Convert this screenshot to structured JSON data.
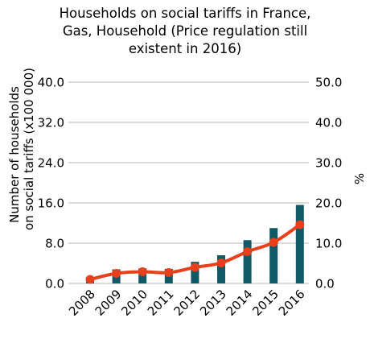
{
  "chart_data": {
    "type": "bar",
    "title_lines": [
      "Households on social tariffs in France,",
      "Gas, Household (Price regulation still",
      "existent in 2016)"
    ],
    "categories": [
      "2008",
      "2009",
      "2010",
      "2011",
      "2012",
      "2013",
      "2014",
      "2015",
      "2016"
    ],
    "ylabel_lines": [
      "Number of households",
      "on social tariffs (x100 000)"
    ],
    "y2label": "%",
    "ylim": [
      0,
      40
    ],
    "y2lim": [
      0,
      50
    ],
    "yticks": [
      "0.0",
      "8.0",
      "16.0",
      "24.0",
      "32.0",
      "40.0"
    ],
    "y2ticks": [
      "0.0",
      "10.0",
      "20.0",
      "30.0",
      "40.0",
      "50.0"
    ],
    "grid": true,
    "series": [
      {
        "type": "bar",
        "axis": "left",
        "color": "#0f5a66",
        "values": [
          1.1,
          2.8,
          3.0,
          2.9,
          4.3,
          5.6,
          8.6,
          11.0,
          15.6
        ]
      },
      {
        "type": "line",
        "axis": "right",
        "color": "#e8401c",
        "values": [
          1.0,
          2.5,
          2.9,
          2.7,
          4.0,
          5.1,
          7.9,
          10.2,
          14.6
        ]
      }
    ]
  }
}
